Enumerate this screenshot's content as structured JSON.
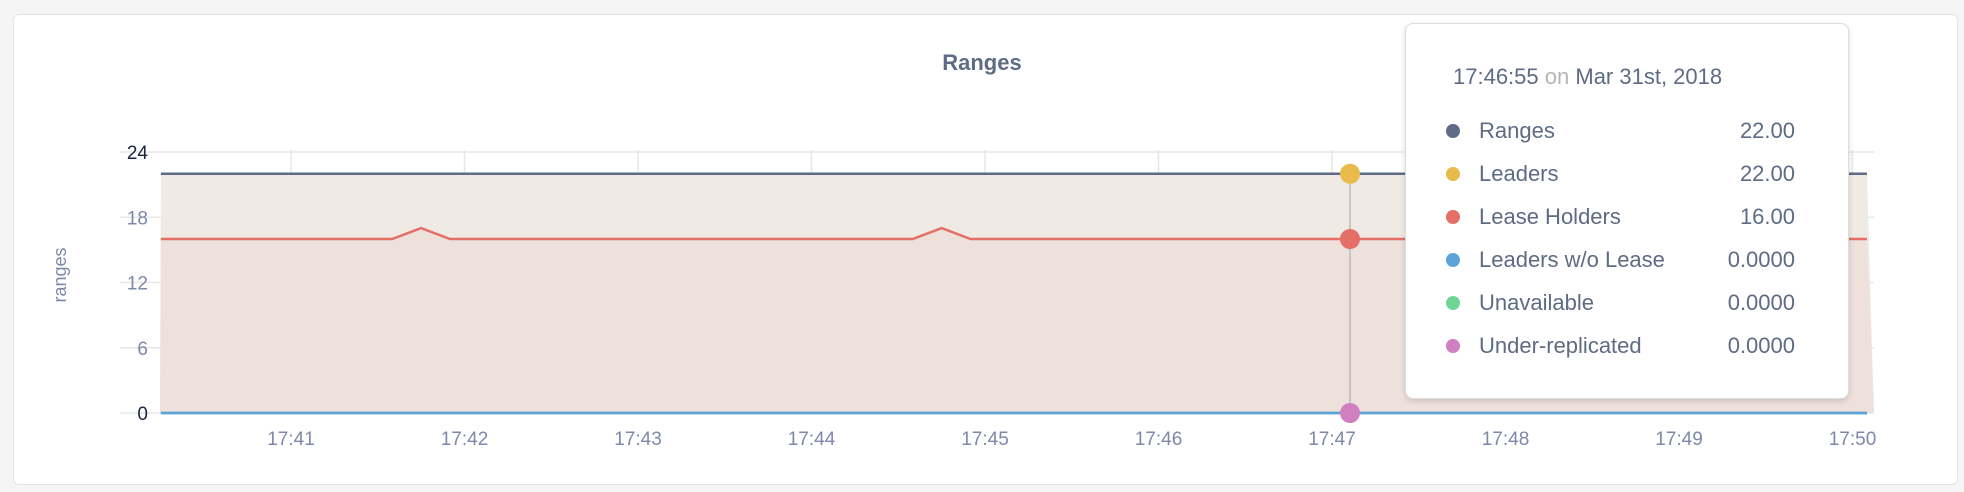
{
  "chart_data": {
    "type": "area",
    "title": "Ranges",
    "ylabel": "ranges",
    "ylim": [
      0,
      24
    ],
    "yticks": [
      "0",
      "6",
      "12",
      "18",
      "24"
    ],
    "xticks": [
      "17:41",
      "17:42",
      "17:43",
      "17:44",
      "17:45",
      "17:46",
      "17:47",
      "17:48",
      "17:49",
      "17:50"
    ],
    "xrange": [
      "17:40:15",
      "17:50:05"
    ],
    "grid": true,
    "series": [
      {
        "name": "Ranges",
        "color": "#5f6c87",
        "constant": 22
      },
      {
        "name": "Leaders",
        "color": "#e8bb4a",
        "fill": "#efebe4",
        "constant": 22
      },
      {
        "name": "Lease Holders",
        "color": "#e56f67",
        "fill": "#eddfd9",
        "constant": 16,
        "peaks": [
          {
            "time": "17:41:45",
            "value": 17
          },
          {
            "time": "17:44:45",
            "value": 17
          }
        ]
      },
      {
        "name": "Leaders w/o Lease",
        "color": "#5ba3d8",
        "constant": 0
      },
      {
        "name": "Unavailable",
        "color": "#6fd698",
        "constant": 0
      },
      {
        "name": "Under-replicated",
        "color": "#d07fc1",
        "constant": 0
      }
    ]
  },
  "tooltip": {
    "time": "17:46:55",
    "on": "on",
    "date": "Mar 31st, 2018",
    "rows": [
      {
        "label": "Ranges",
        "value": "22.00",
        "color": "#5f6c87"
      },
      {
        "label": "Leaders",
        "value": "22.00",
        "color": "#e8bb4a"
      },
      {
        "label": "Lease Holders",
        "value": "16.00",
        "color": "#e56f67"
      },
      {
        "label": "Leaders w/o Lease",
        "value": "0.0000",
        "color": "#5ba3d8"
      },
      {
        "label": "Unavailable",
        "value": "0.0000",
        "color": "#6fd698"
      },
      {
        "label": "Under-replicated",
        "value": "0.0000",
        "color": "#d07fc1"
      }
    ]
  }
}
